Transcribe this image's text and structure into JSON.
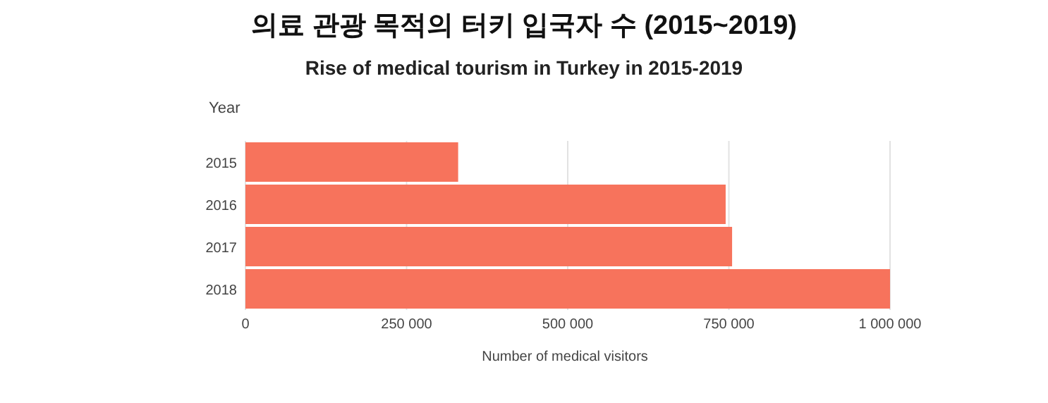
{
  "chart_data": {
    "type": "bar",
    "orientation": "horizontal",
    "title": "의료 관광 목적의 터키 입국자 수 (2015~2019)",
    "subtitle": "Rise of medical tourism in Turkey in 2015-2019",
    "ylabel": "Year",
    "xlabel": "Number of medical visitors",
    "categories": [
      "2015",
      "2016",
      "2017",
      "2018"
    ],
    "values": [
      330000,
      745000,
      755000,
      1000000
    ],
    "color": "#f7735c",
    "xlim": [
      0,
      1000000
    ],
    "xticks": [
      {
        "value": 0,
        "label": "0"
      },
      {
        "value": 250000,
        "label": "250 000"
      },
      {
        "value": 500000,
        "label": "500 000"
      },
      {
        "value": 750000,
        "label": "750 000"
      },
      {
        "value": 1000000,
        "label": "1 000 000"
      }
    ],
    "grid": "x"
  }
}
